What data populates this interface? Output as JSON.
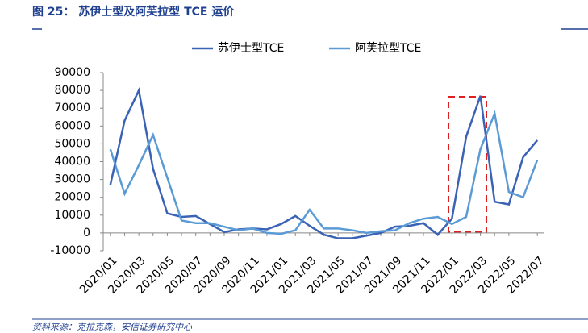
{
  "title": "图 25： 苏伊士型及阿芙拉型 TCE 运价",
  "source": "资料来源：克拉克森，安信证券研究中心",
  "chart_data": {
    "type": "line",
    "categories": [
      "2020/01",
      null,
      "2020/03",
      null,
      "2020/05",
      null,
      "2020/07",
      null,
      "2020/09",
      null,
      "2020/11",
      null,
      "2021/01",
      null,
      "2021/03",
      null,
      "2021/05",
      null,
      "2021/07",
      null,
      "2021/09",
      null,
      "2021/11",
      null,
      "2022/01",
      null,
      "2022/03",
      null,
      "2022/05",
      null,
      "2022/07"
    ],
    "series": [
      {
        "name": "苏伊士型TCE",
        "color": "#3a63b5",
        "values": [
          27000,
          63000,
          80000,
          36000,
          11000,
          9000,
          9500,
          5000,
          500,
          2000,
          2500,
          2000,
          5000,
          9500,
          4000,
          -1000,
          -3000,
          -3000,
          -1500,
          0,
          3500,
          4000,
          5500,
          -1000,
          8000,
          54000,
          77000,
          17500,
          16000,
          42500,
          52000
        ]
      },
      {
        "name": "阿芙拉型TCE",
        "color": "#5b9bd5",
        "values": [
          47000,
          22000,
          38000,
          55000,
          31000,
          7000,
          5500,
          5500,
          3500,
          1500,
          2500,
          0,
          -500,
          1500,
          13000,
          2500,
          2500,
          1500,
          0,
          1000,
          1500,
          5500,
          8000,
          9000,
          5000,
          9000,
          47000,
          67000,
          23000,
          20000,
          41000
        ]
      }
    ],
    "ylim": [
      -10000,
      90000
    ],
    "yticks": [
      -10000,
      0,
      10000,
      20000,
      30000,
      40000,
      50000,
      60000,
      70000,
      80000,
      90000
    ],
    "legend": "top"
  }
}
